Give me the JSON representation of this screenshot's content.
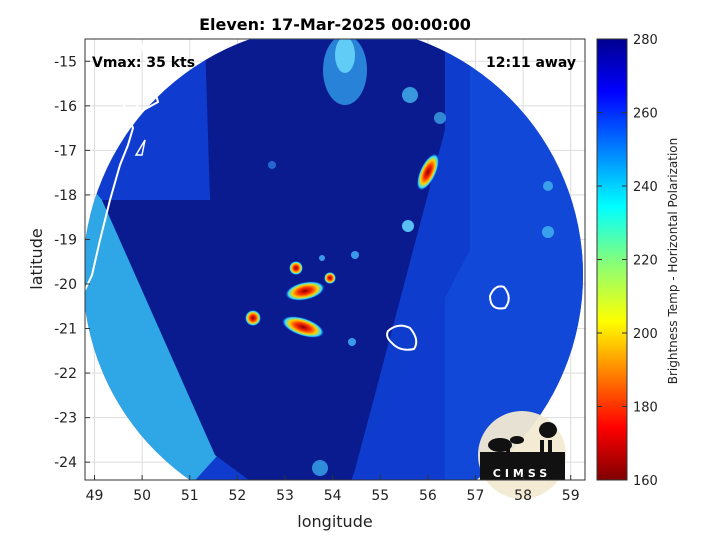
{
  "chart_data": {
    "type": "heatmap",
    "title": "Eleven: 17-Mar-2025 00:00:00",
    "xlabel": "longitude",
    "ylabel": "latitude",
    "xlim": [
      48.8,
      59.3
    ],
    "ylim": [
      -24.4,
      -14.5
    ],
    "x_ticks": [
      "49",
      "50",
      "51",
      "52",
      "53",
      "54",
      "55",
      "56",
      "57",
      "58",
      "59"
    ],
    "y_ticks": [
      "-15",
      "-16",
      "-17",
      "-18",
      "-19",
      "-20",
      "-21",
      "-22",
      "-23",
      "-24"
    ],
    "grid": true,
    "annotations": {
      "vmax": "Vmax: 35 kts",
      "distance": "12:11 away"
    },
    "colorbar": {
      "label": "Brightness Temp - Horizontal Polarization",
      "range": [
        160,
        280
      ],
      "ticks": [
        "280",
        "260",
        "240",
        "220",
        "200",
        "180",
        "160"
      ],
      "colormap": "jet"
    },
    "logo_text": "CIMSS",
    "colors": {
      "cold_background": "#0a1a8c",
      "mid_background": "#0f3ccf",
      "warm_swath": "#29a8e8",
      "convection_hot": "#b00000"
    }
  }
}
